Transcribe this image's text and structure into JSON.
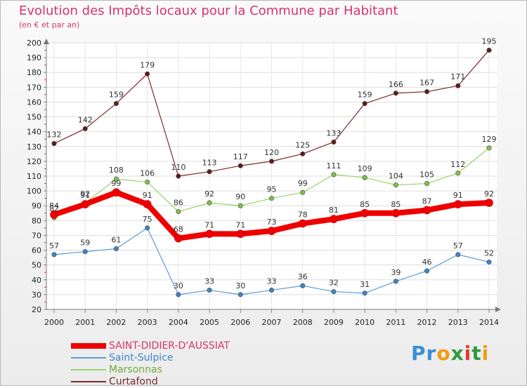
{
  "title": "Evolution des Impôts locaux pour la Commune par Habitant",
  "subtitle": "(en € et par an)",
  "logo_letters": [
    "P",
    "r",
    "o",
    "x",
    "i",
    "t",
    "i"
  ],
  "logo_colors": [
    "#3a8fd6",
    "#3a8fd6",
    "#f39c12",
    "#2e9a3e",
    "#e23b2e",
    "#2e9a3e",
    "#f39c12"
  ],
  "chart_data": {
    "type": "line",
    "title": "Evolution des Impôts locaux pour la Commune par Habitant",
    "subtitle": "(en € et par an)",
    "x": [
      "2000",
      "2001",
      "2002",
      "2003",
      "2004",
      "2005",
      "2006",
      "2007",
      "2008",
      "2009",
      "2010",
      "2011",
      "2012",
      "2013",
      "2014"
    ],
    "ylim": [
      20,
      200
    ],
    "yticks": [
      20,
      30,
      40,
      50,
      60,
      70,
      80,
      90,
      100,
      110,
      120,
      130,
      140,
      150,
      160,
      170,
      180,
      190,
      200
    ],
    "grid": true,
    "legend_position": "bottom-left",
    "series": [
      {
        "name": "SAINT-DIDIER-D'AUSSIAT",
        "color": "#ee0000",
        "marker": "#ee0000",
        "width": 8,
        "values": [
          84,
          91,
          99,
          91,
          68,
          71,
          71,
          73,
          78,
          81,
          85,
          85,
          87,
          91,
          92
        ],
        "labels": [
          "84",
          "91",
          "99",
          "91",
          "68",
          "71",
          "71",
          "73",
          "78",
          "81",
          "85",
          "85",
          "87",
          "91",
          "92"
        ]
      },
      {
        "name": "Saint-Sulpice",
        "color": "#5b9bd5",
        "marker": "#3d85c6",
        "width": 1.2,
        "values": [
          57,
          59,
          61,
          75,
          30,
          33,
          30,
          33,
          36,
          32,
          31,
          39,
          46,
          57,
          52
        ],
        "labels": [
          "57",
          "59",
          "61",
          "75",
          "30",
          "33",
          "30",
          "33",
          "36",
          "32",
          "31",
          "39",
          "46",
          "57",
          "52"
        ]
      },
      {
        "name": "Marsonnas",
        "color": "#9ad26a",
        "marker": "#7fc246",
        "width": 1.2,
        "values": [
          82,
          92,
          108,
          106,
          86,
          92,
          90,
          95,
          99,
          111,
          109,
          104,
          105,
          112,
          129
        ],
        "labels": [
          "82",
          "92",
          "108",
          "106",
          "86",
          "92",
          "90",
          "95",
          "99",
          "111",
          "109",
          "104",
          "105",
          "112",
          "129"
        ]
      },
      {
        "name": "Curtafond",
        "color": "#7b2a2a",
        "marker": "#5e1c1c",
        "width": 1.2,
        "values": [
          132,
          142,
          159,
          179,
          110,
          113,
          117,
          120,
          125,
          133,
          159,
          166,
          167,
          171,
          195
        ],
        "labels": [
          "132",
          "142",
          "159",
          "179",
          "110",
          "113",
          "117",
          "120",
          "125",
          "133",
          "159",
          "166",
          "167",
          "171",
          "195"
        ]
      }
    ]
  }
}
